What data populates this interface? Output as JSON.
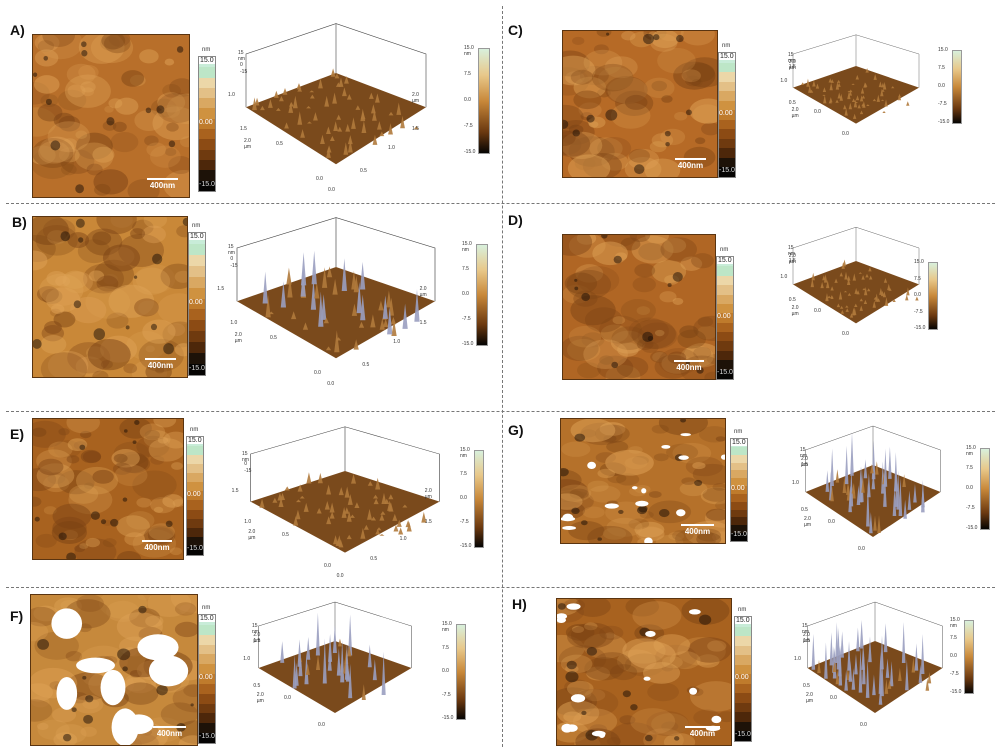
{
  "panels": [
    {
      "id": "A",
      "label": "A)",
      "scale_text": "400nm",
      "cbar_unit": "nm",
      "cbar_top": "15.0",
      "cbar_mid": "0.00",
      "cbar_bot": "-15.0",
      "z_label": "15 nm",
      "xy_unit": "2.0 µm",
      "ticks": [
        "0",
        "-15",
        "1.0",
        "1.5",
        "0.5",
        "0.0",
        "0.0",
        "0.5",
        "1.0",
        "1.5",
        "2.0 µm"
      ],
      "sc_ticks": [
        "15.0 nm",
        "7.5",
        "0.0",
        "-7.5",
        "-15.0"
      ],
      "tone": "#b86f2a"
    },
    {
      "id": "B",
      "label": "B)",
      "scale_text": "400nm",
      "cbar_unit": "nm",
      "cbar_top": "15.0",
      "cbar_mid": "0.00",
      "cbar_bot": "-15.0",
      "z_label": "15 nm",
      "xy_unit": "2.0 µm",
      "ticks": [
        "0",
        "-15",
        "1.5",
        "1.0",
        "0.5",
        "0.0",
        "0.0",
        "0.5",
        "1.0",
        "1.5",
        "2.0 µm"
      ],
      "sc_ticks": [
        "15.0 nm",
        "7.5",
        "0.0",
        "-7.5",
        "-15.0"
      ],
      "tone": "#c98838"
    },
    {
      "id": "C",
      "label": "C)",
      "scale_text": "400nm",
      "cbar_unit": "nm",
      "cbar_top": "15.0",
      "cbar_mid": "0.00",
      "cbar_bot": "-15.0",
      "z_label": "15 nm",
      "xy_unit": "2.0 µm",
      "ticks": [
        "2.0 µm",
        "1.5",
        "1.0",
        "0.5",
        "0.0",
        "0.0"
      ],
      "sc_ticks": [
        "15.0",
        "7.5",
        "0.0",
        "-7.5",
        "-15.0"
      ],
      "tone": "#b66a26"
    },
    {
      "id": "D",
      "label": "D)",
      "scale_text": "400nm",
      "cbar_unit": "nm",
      "cbar_top": "15.0",
      "cbar_mid": "0.00",
      "cbar_bot": "-15.0",
      "z_label": "15 nm",
      "xy_unit": "2.0 µm",
      "ticks": [
        "2.0 µm",
        "1.5",
        "1.0",
        "0.5",
        "0.0",
        "0.0"
      ],
      "sc_ticks": [
        "15.0",
        "7.5",
        "0.0",
        "-7.5",
        "-15.0"
      ],
      "tone": "#b06624"
    },
    {
      "id": "E",
      "label": "E)",
      "scale_text": "400nm",
      "cbar_unit": "nm",
      "cbar_top": "15.0",
      "cbar_mid": "0.00",
      "cbar_bot": "-15.0",
      "z_label": "15 nm",
      "xy_unit": "2.0 µm",
      "ticks": [
        "0",
        "-15",
        "1.5",
        "1.0",
        "0.5",
        "0.0",
        "0.0",
        "0.5",
        "1.0",
        "1.5",
        "2.0 µm"
      ],
      "sc_ticks": [
        "15.0 nm",
        "7.5",
        "0.0",
        "-7.5",
        "-15.0"
      ],
      "tone": "#a8621f"
    },
    {
      "id": "G",
      "label": "G)",
      "scale_text": "400nm",
      "cbar_unit": "nm",
      "cbar_top": "15.0",
      "cbar_mid": "0.00",
      "cbar_bot": "-15.0",
      "z_label": "15 nm",
      "xy_unit": "2.0 µm",
      "ticks": [
        "2.0 µm",
        "1.5",
        "1.0",
        "0.5",
        "0.0",
        "0.0"
      ],
      "sc_ticks": [
        "15.0 nm",
        "7.5",
        "0.0",
        "-7.5",
        "-15.0"
      ],
      "tone": "#b5712a"
    },
    {
      "id": "F",
      "label": "F)",
      "scale_text": "400nm",
      "cbar_unit": "nm",
      "cbar_top": "15.0",
      "cbar_mid": "0.00",
      "cbar_bot": "-15.0",
      "z_label": "15 nm",
      "xy_unit": "2.0 µm",
      "ticks": [
        "2.0 µm",
        "1.5",
        "1.0",
        "0.5",
        "0.0",
        "0.0"
      ],
      "sc_ticks": [
        "15.0 nm",
        "7.5",
        "0.0",
        "-7.5",
        "-15.0"
      ],
      "tone": "#c6893c"
    },
    {
      "id": "H",
      "label": "H)",
      "scale_text": "400nm",
      "cbar_unit": "nm",
      "cbar_top": "15.0",
      "cbar_mid": "0.00",
      "cbar_bot": "-15.0",
      "z_label": "15 nm",
      "xy_unit": "2.0 µm",
      "ticks": [
        "2.0 µm",
        "1.5",
        "1.0",
        "0.5",
        "0.0",
        "0.0"
      ],
      "sc_ticks": [
        "15.0 nm",
        "7.5",
        "0.0",
        "-7.5",
        "-15.0"
      ],
      "tone": "#a8621f"
    }
  ],
  "colors": {
    "cbar": [
      "#c8ecd8",
      "#bde6c7",
      "#ecd7a8",
      "#e3c087",
      "#d9a862",
      "#cf9240",
      "#bf7b2c",
      "#a9621e",
      "#8c4b14",
      "#6f3a0f",
      "#4d270a",
      "#1d1208",
      "#050403"
    ]
  }
}
